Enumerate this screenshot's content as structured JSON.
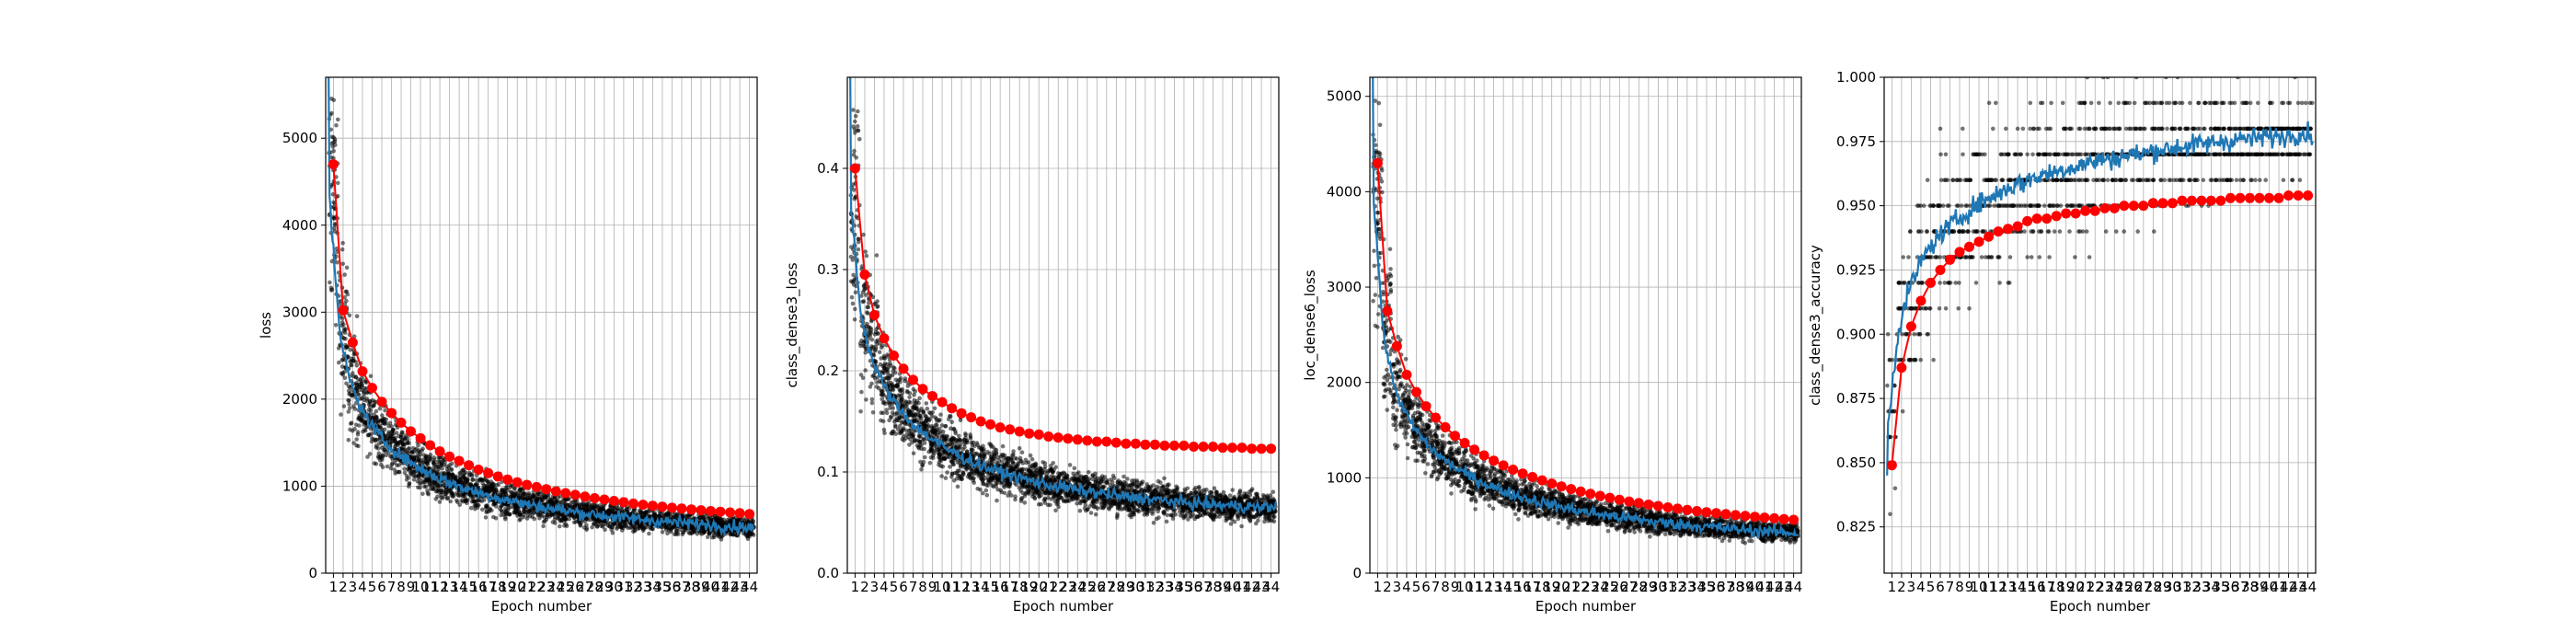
{
  "chart_data": [
    {
      "type": "scatter",
      "xlabel": "Epoch number",
      "ylabel": "loss",
      "ylim": [
        0,
        5700
      ],
      "yticks": [
        0,
        1000,
        2000,
        3000,
        4000,
        5000
      ],
      "x_categories": [
        1,
        2,
        3,
        4,
        5,
        6,
        7,
        8,
        9,
        10,
        11,
        12,
        13,
        14,
        15,
        16,
        17,
        18,
        19,
        20,
        21,
        22,
        23,
        24,
        25,
        26,
        27,
        28,
        29,
        30,
        31,
        32,
        33,
        34,
        35,
        36,
        37,
        38,
        39,
        40,
        41,
        42,
        43,
        44
      ],
      "grid": true,
      "colors": {
        "points": "#000000",
        "batch_line": "#1f77b4",
        "epoch_markers": "#ff0000"
      },
      "epoch_values": [
        4700,
        3020,
        2650,
        2320,
        2130,
        1970,
        1840,
        1730,
        1630,
        1550,
        1470,
        1400,
        1340,
        1290,
        1240,
        1190,
        1150,
        1110,
        1075,
        1045,
        1015,
        990,
        965,
        940,
        920,
        900,
        880,
        862,
        846,
        830,
        815,
        800,
        787,
        775,
        763,
        752,
        742,
        732,
        723,
        714,
        706,
        698,
        690,
        680
      ],
      "batch_trend_values": [
        4300,
        2800,
        2250,
        1950,
        1750,
        1600,
        1480,
        1380,
        1300,
        1230,
        1165,
        1110,
        1060,
        1015,
        975,
        940,
        905,
        875,
        850,
        825,
        800,
        780,
        760,
        742,
        725,
        708,
        693,
        679,
        666,
        654,
        642,
        631,
        620,
        610,
        600,
        591,
        582,
        573,
        565,
        557,
        549,
        542,
        535,
        528
      ],
      "batch_start_value": 5700
    },
    {
      "type": "scatter",
      "xlabel": "Epoch number",
      "ylabel": "class_dense3_loss",
      "ylim": [
        0,
        0.49
      ],
      "yticks": [
        "0.0",
        "0.1",
        "0.2",
        "0.3",
        "0.4"
      ],
      "x_categories": [
        1,
        2,
        3,
        4,
        5,
        6,
        7,
        8,
        9,
        10,
        11,
        12,
        13,
        14,
        15,
        16,
        17,
        18,
        19,
        20,
        21,
        22,
        23,
        24,
        25,
        26,
        27,
        28,
        29,
        30,
        31,
        32,
        33,
        34,
        35,
        36,
        37,
        38,
        39,
        40,
        41,
        42,
        43,
        44
      ],
      "grid": true,
      "colors": {
        "points": "#000000",
        "batch_line": "#1f77b4",
        "epoch_markers": "#ff0000"
      },
      "epoch_values": [
        0.4,
        0.295,
        0.255,
        0.232,
        0.215,
        0.202,
        0.191,
        0.182,
        0.175,
        0.169,
        0.163,
        0.158,
        0.154,
        0.15,
        0.147,
        0.144,
        0.142,
        0.14,
        0.138,
        0.137,
        0.135,
        0.134,
        0.133,
        0.132,
        0.131,
        0.13,
        0.13,
        0.129,
        0.128,
        0.128,
        0.127,
        0.127,
        0.126,
        0.126,
        0.126,
        0.125,
        0.125,
        0.125,
        0.124,
        0.124,
        0.124,
        0.123,
        0.123,
        0.123
      ],
      "batch_trend_values": [
        0.36,
        0.255,
        0.215,
        0.192,
        0.175,
        0.162,
        0.151,
        0.142,
        0.135,
        0.128,
        0.122,
        0.117,
        0.112,
        0.108,
        0.104,
        0.101,
        0.098,
        0.095,
        0.093,
        0.09,
        0.088,
        0.086,
        0.085,
        0.083,
        0.081,
        0.08,
        0.079,
        0.077,
        0.076,
        0.075,
        0.074,
        0.073,
        0.072,
        0.071,
        0.07,
        0.069,
        0.069,
        0.068,
        0.067,
        0.067,
        0.066,
        0.066,
        0.065,
        0.065
      ],
      "batch_start_value": 0.49
    },
    {
      "type": "scatter",
      "xlabel": "Epoch number",
      "ylabel": "loc_dense6_loss",
      "ylim": [
        0,
        5200
      ],
      "yticks": [
        0,
        1000,
        2000,
        3000,
        4000,
        5000
      ],
      "x_categories": [
        1,
        2,
        3,
        4,
        5,
        6,
        7,
        8,
        9,
        10,
        11,
        12,
        13,
        14,
        15,
        16,
        17,
        18,
        19,
        20,
        21,
        22,
        23,
        24,
        25,
        26,
        27,
        28,
        29,
        30,
        31,
        32,
        33,
        34,
        35,
        36,
        37,
        38,
        39,
        40,
        41,
        42,
        43,
        44
      ],
      "grid": true,
      "colors": {
        "points": "#000000",
        "batch_line": "#1f77b4",
        "epoch_markers": "#ff0000"
      },
      "epoch_values": [
        4300,
        2750,
        2380,
        2080,
        1900,
        1750,
        1630,
        1530,
        1440,
        1365,
        1295,
        1235,
        1180,
        1130,
        1085,
        1045,
        1008,
        973,
        940,
        910,
        882,
        856,
        832,
        810,
        790,
        770,
        752,
        735,
        719,
        704,
        690,
        676,
        663,
        651,
        640,
        629,
        619,
        609,
        600,
        591,
        583,
        575,
        567,
        560
      ],
      "batch_trend_values": [
        3900,
        2500,
        2000,
        1730,
        1550,
        1410,
        1300,
        1210,
        1135,
        1070,
        1012,
        962,
        917,
        877,
        841,
        808,
        778,
        750,
        725,
        702,
        680,
        660,
        641,
        624,
        608,
        593,
        578,
        565,
        552,
        540,
        529,
        518,
        508,
        498,
        489,
        481,
        472,
        465,
        457,
        450,
        443,
        437,
        431,
        425
      ],
      "batch_start_value": 5200
    },
    {
      "type": "scatter",
      "xlabel": "Epoch number",
      "ylabel": "class_dense3_accuracy",
      "ylim": [
        0.807,
        1.0
      ],
      "yticks": [
        "0.825",
        "0.850",
        "0.875",
        "0.900",
        "0.925",
        "0.950",
        "0.975",
        "1.000"
      ],
      "x_categories": [
        1,
        2,
        3,
        4,
        5,
        6,
        7,
        8,
        9,
        10,
        11,
        12,
        13,
        14,
        15,
        16,
        17,
        18,
        19,
        20,
        21,
        22,
        23,
        24,
        25,
        26,
        27,
        28,
        29,
        30,
        31,
        32,
        33,
        34,
        35,
        36,
        37,
        38,
        39,
        40,
        41,
        42,
        43,
        44
      ],
      "grid": true,
      "colors": {
        "points": "#000000",
        "batch_line": "#1f77b4",
        "epoch_markers": "#ff0000"
      },
      "epoch_values": [
        0.849,
        0.887,
        0.903,
        0.913,
        0.92,
        0.925,
        0.929,
        0.932,
        0.934,
        0.936,
        0.938,
        0.94,
        0.941,
        0.942,
        0.944,
        0.945,
        0.945,
        0.946,
        0.947,
        0.947,
        0.948,
        0.948,
        0.949,
        0.949,
        0.95,
        0.95,
        0.95,
        0.951,
        0.951,
        0.951,
        0.952,
        0.952,
        0.952,
        0.952,
        0.952,
        0.953,
        0.953,
        0.953,
        0.953,
        0.953,
        0.953,
        0.954,
        0.954,
        0.954
      ],
      "batch_trend_values": [
        0.865,
        0.9,
        0.915,
        0.925,
        0.932,
        0.937,
        0.941,
        0.944,
        0.947,
        0.95,
        0.952,
        0.954,
        0.956,
        0.958,
        0.959,
        0.961,
        0.962,
        0.963,
        0.964,
        0.965,
        0.966,
        0.967,
        0.968,
        0.968,
        0.969,
        0.97,
        0.97,
        0.971,
        0.972,
        0.972,
        0.973,
        0.973,
        0.974,
        0.974,
        0.975,
        0.975,
        0.976,
        0.976,
        0.976,
        0.977,
        0.977,
        0.977,
        0.978,
        0.978
      ],
      "batch_start_value": 0.845
    }
  ]
}
